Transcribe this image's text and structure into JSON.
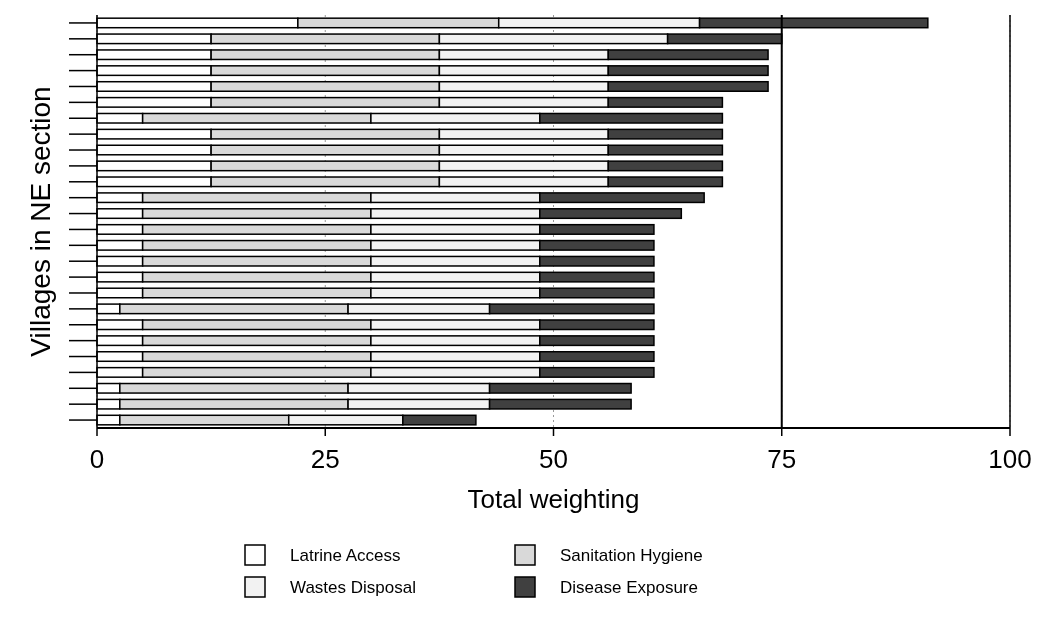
{
  "chart_data": {
    "type": "bar",
    "orientation": "horizontal",
    "stacked": true,
    "xlabel": "Total weighting",
    "ylabel": "Villages in NE section",
    "categories": [
      null,
      null,
      null,
      null,
      null,
      null,
      null,
      null,
      null,
      null,
      null,
      null,
      null,
      null,
      null,
      null,
      null,
      null,
      null,
      null,
      null,
      null,
      null,
      null,
      null,
      null
    ],
    "series": [
      {
        "name": "Latrine Access",
        "color": "#ffffff",
        "values": [
          22,
          12.5,
          12.5,
          12.5,
          12.5,
          12.5,
          5,
          12.5,
          12.5,
          12.5,
          12.5,
          5,
          5,
          5,
          5,
          5,
          5,
          5,
          2.5,
          5,
          5,
          5,
          5,
          2.5,
          2.5,
          2.5
        ]
      },
      {
        "name": "Sanitation Hygiene",
        "color": "#d9d9d9",
        "values": [
          22,
          25,
          25,
          25,
          25,
          25,
          25,
          25,
          25,
          25,
          25,
          25,
          25,
          25,
          25,
          25,
          25,
          25,
          25,
          25,
          25,
          25,
          25,
          25,
          25,
          18.5
        ]
      },
      {
        "name": "Wastes Disposal",
        "color": "#f2f2f2",
        "values": [
          22,
          25,
          18.5,
          18.5,
          18.5,
          18.5,
          18.5,
          18.5,
          18.5,
          18.5,
          18.5,
          18.5,
          18.5,
          18.5,
          18.5,
          18.5,
          18.5,
          18.5,
          15.5,
          18.5,
          18.5,
          18.5,
          18.5,
          15.5,
          15.5,
          12.5
        ]
      },
      {
        "name": "Disease Exposure",
        "color": "#404040",
        "values": [
          25,
          12.5,
          17.5,
          17.5,
          17.5,
          12.5,
          20,
          12.5,
          12.5,
          12.5,
          12.5,
          18,
          15.5,
          12.5,
          12.5,
          12.5,
          12.5,
          12.5,
          18,
          12.5,
          12.5,
          12.5,
          12.5,
          15.5,
          15.5,
          8
        ]
      }
    ],
    "xlim": [
      0,
      100
    ],
    "xticks": [
      0,
      25,
      50,
      75,
      100
    ],
    "grid": "x",
    "legend": "bottom",
    "ref_lines": [
      {
        "axis": "x",
        "value": 75,
        "color": "#000000"
      }
    ]
  }
}
